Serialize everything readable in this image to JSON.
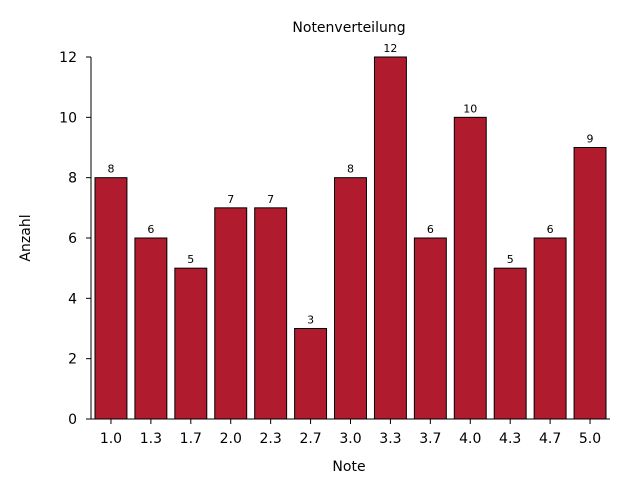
{
  "chart_data": {
    "type": "bar",
    "title": "Notenverteilung",
    "xlabel": "Note",
    "ylabel": "Anzahl",
    "categories": [
      "1.0",
      "1.3",
      "1.7",
      "2.0",
      "2.3",
      "2.7",
      "3.0",
      "3.3",
      "3.7",
      "4.0",
      "4.3",
      "4.7",
      "5.0"
    ],
    "values": [
      8,
      6,
      5,
      7,
      7,
      3,
      8,
      12,
      6,
      10,
      5,
      6,
      9
    ],
    "data_labels": [
      "8",
      "6",
      "5",
      "7",
      "7",
      "3",
      "8",
      "12",
      "6",
      "10",
      "5",
      "6",
      "9"
    ],
    "ylim": [
      0,
      12
    ],
    "yticks": [
      "0",
      "2",
      "4",
      "6",
      "8",
      "10",
      "12"
    ],
    "grid": false,
    "bar_color": "#b01c2e"
  }
}
